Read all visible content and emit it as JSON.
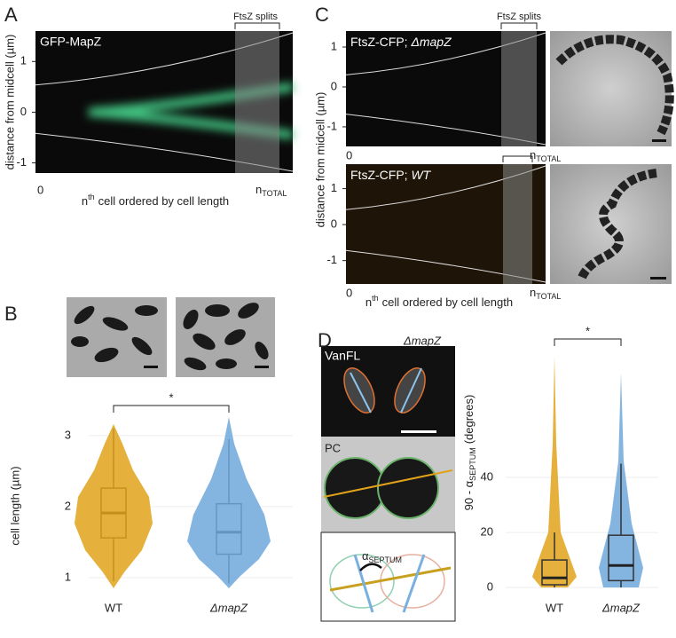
{
  "chart_data": [
    {
      "type": "kymograph",
      "panel_label": "A",
      "inset_label": "GFP-MapZ",
      "annotation": "FtsZ splits",
      "ylabel": "distance from midcell (µm)",
      "ylim": [
        -1.2,
        1.6
      ],
      "yticks": [
        1,
        0,
        -1
      ],
      "x_start_label": "0",
      "x_end_label": {
        "n": "n",
        "sub": "TOTAL"
      },
      "xlabel": {
        "n": "n",
        "sup": "th",
        "rest": "cell ordered by cell length"
      },
      "color": "#3fbf7f"
    },
    {
      "type": "kymograph",
      "panel_label": "C",
      "inset_label": {
        "text": "FtsZ-CFP; ",
        "strain": "ΔmapZ"
      },
      "annotation": "FtsZ splits",
      "ylim": [
        -1.49,
        1.4
      ],
      "yticks": [
        1,
        0,
        -1
      ],
      "x_start_label": "0",
      "x_end_label": {
        "n": "n",
        "sub": "TOTAL"
      },
      "color": "#7aa8ff"
    },
    {
      "type": "kymograph",
      "inset_label": {
        "text": "FtsZ-CFP; ",
        "strain": "WT"
      },
      "ylabel": "distance from midcell (µm)",
      "ylim": [
        -1.65,
        1.68
      ],
      "yticks": [
        1,
        0,
        -1
      ],
      "x_start_label": "0",
      "x_end_label": {
        "n": "n",
        "sub": "TOTAL"
      },
      "xlabel": {
        "n": "n",
        "sup": "th",
        "rest": "cell ordered by cell length"
      },
      "color": "#ffb030"
    },
    {
      "type": "box",
      "panel_label": "B",
      "ylabel": "cell length (µm)",
      "ylim": [
        0.85,
        3.16
      ],
      "yticks": [
        1,
        2,
        3
      ],
      "grid": true,
      "categories": [
        "WT",
        "ΔmapZ"
      ],
      "significance": "*",
      "series": [
        {
          "name": "WT",
          "color": "#e0a21a",
          "low": 0.95,
          "q1": 1.56,
          "median": 1.91,
          "q3": 2.26,
          "high": 3.1
        },
        {
          "name": "ΔmapZ",
          "color": "#6fa8dc",
          "low": 0.92,
          "q1": 1.33,
          "median": 1.64,
          "q3": 2.04,
          "high": 2.95
        }
      ]
    },
    {
      "type": "box",
      "panel_label": "D",
      "strain_label": "ΔmapZ",
      "image_labels": [
        "VanFL",
        "PC"
      ],
      "angle_label": {
        "text": "α",
        "sub": "SEPTUM"
      },
      "ylabel": {
        "text": "90 - α",
        "sub": "SEPTUM",
        "rest": "(degrees)"
      },
      "ylim": [
        -3.2,
        83.9
      ],
      "yticks": [
        0,
        20,
        40
      ],
      "grid": true,
      "categories": [
        "WT",
        "ΔmapZ"
      ],
      "significance": "*",
      "series": [
        {
          "name": "WT",
          "color": "#e0a21a",
          "low": 0,
          "q1": 1,
          "median": 3.5,
          "q3": 10,
          "high": 20
        },
        {
          "name": "ΔmapZ",
          "color": "#6fa8dc",
          "low": 0,
          "q1": 2.5,
          "median": 8,
          "q3": 19,
          "high": 45
        }
      ]
    }
  ]
}
